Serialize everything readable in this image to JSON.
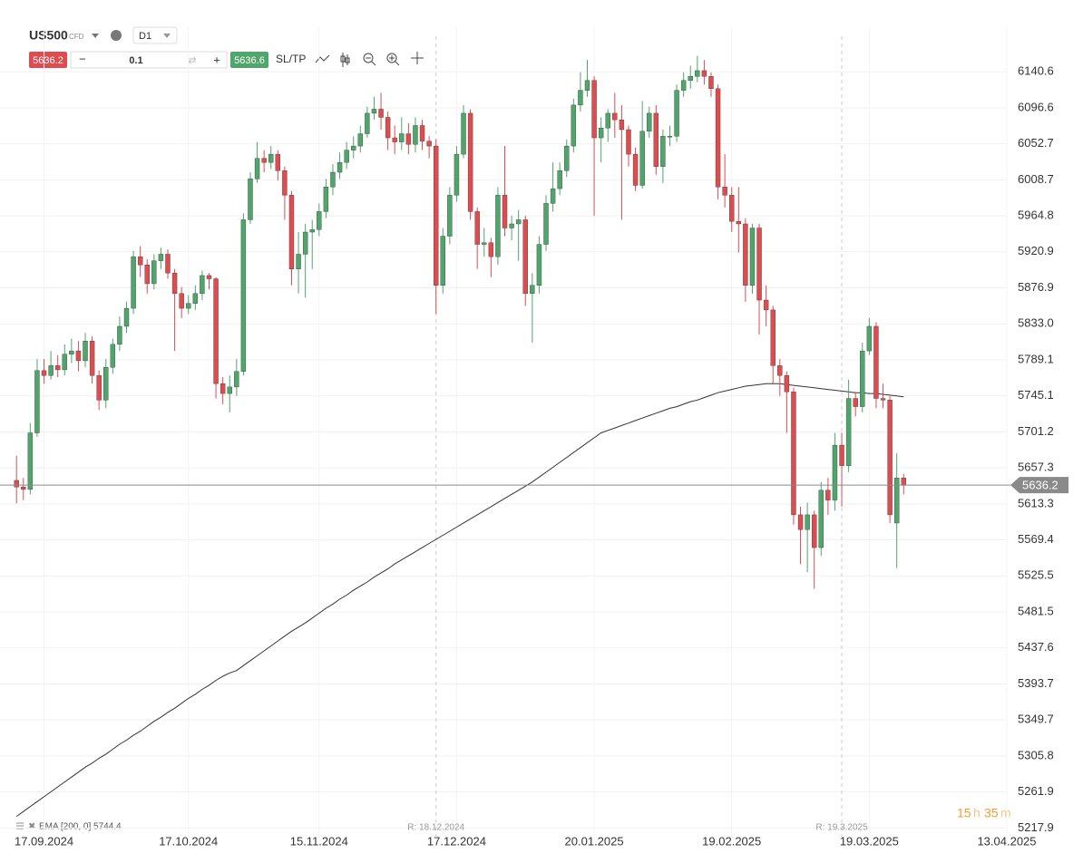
{
  "toolbar": {
    "symbol": "US500",
    "symbol_type": "CFD",
    "timeframe": "D1",
    "sell_price": "5636.2",
    "volume": "0.1",
    "buy_price": "5636.6",
    "sltp": "SL/TP"
  },
  "timer": {
    "hours": "15",
    "hours_unit": "h",
    "minutes": "35",
    "minutes_unit": "m"
  },
  "chart_data": {
    "type": "candlestick",
    "up_color": "#4fa66a",
    "down_color": "#e04b4f",
    "open": [
      5642,
      5634,
      5631,
      5700,
      5776,
      5770,
      5782,
      5777,
      5796,
      5800,
      5788,
      5812,
      5770,
      5740,
      5780,
      5808,
      5830,
      5852,
      5915,
      5905,
      5882,
      5910,
      5918,
      5895,
      5870,
      5852,
      5858,
      5870,
      5892,
      5888,
      5760,
      5748,
      5756,
      5775,
      5960,
      6010,
      6035,
      6030,
      6040,
      6020,
      5990,
      5900,
      5918,
      5945,
      5948,
      5970,
      6000,
      6018,
      6030,
      6045,
      6050,
      6065,
      6090,
      6095,
      6085,
      6060,
      6055,
      6065,
      6052,
      6075,
      6056,
      6050,
      5880,
      5940,
      5990,
      6040,
      6090,
      5970,
      5930,
      5932,
      5915,
      5990,
      5950,
      5955,
      5960,
      5870,
      5880,
      5930,
      5980,
      5998,
      6020,
      6050,
      6100,
      6118,
      6130,
      6060,
      6072,
      6090,
      6082,
      6070,
      6040,
      6002,
      6068,
      6090,
      6025,
      6062,
      6062,
      6118,
      6130,
      6135,
      6142,
      6135,
      6120,
      6000,
      5990,
      5958,
      5955,
      5880,
      5950,
      5862,
      5850,
      5782,
      5770,
      5750,
      5600,
      5582,
      5600,
      5560,
      5630,
      5618,
      5685,
      5660,
      5742,
      5732,
      5800,
      5830,
      5742,
      5740,
      5590,
      5645
    ],
    "high": [
      5672,
      5645,
      5712,
      5790,
      5790,
      5800,
      5795,
      5808,
      5815,
      5812,
      5822,
      5818,
      5776,
      5790,
      5815,
      5842,
      5860,
      5922,
      5928,
      5912,
      5918,
      5926,
      5924,
      5900,
      5878,
      5868,
      5880,
      5898,
      5895,
      5890,
      5768,
      5770,
      5790,
      5968,
      6018,
      6055,
      6045,
      6050,
      6045,
      6025,
      5995,
      5945,
      5955,
      5960,
      5980,
      6010,
      6028,
      6042,
      6055,
      6062,
      6075,
      6098,
      6110,
      6115,
      6092,
      6075,
      6085,
      6078,
      6085,
      6082,
      6062,
      6058,
      5950,
      6000,
      6050,
      6100,
      6095,
      5975,
      5950,
      5938,
      6000,
      6050,
      5965,
      5972,
      5965,
      5895,
      5940,
      5990,
      6030,
      6030,
      6058,
      6108,
      6140,
      6155,
      6135,
      6085,
      6095,
      6115,
      6100,
      6075,
      6048,
      6105,
      6098,
      6100,
      6070,
      6075,
      6125,
      6140,
      6148,
      6160,
      6155,
      6140,
      6125,
      6040,
      6000,
      6000,
      5962,
      5955,
      5955,
      5880,
      5855,
      5790,
      5775,
      5755,
      5610,
      5615,
      5605,
      5640,
      5645,
      5700,
      5700,
      5765,
      5750,
      5810,
      5840,
      5835,
      5760,
      5745,
      5675,
      5650
    ],
    "low": [
      5614,
      5618,
      5625,
      5695,
      5760,
      5765,
      5768,
      5770,
      5785,
      5775,
      5780,
      5760,
      5728,
      5730,
      5772,
      5800,
      5822,
      5845,
      5890,
      5870,
      5875,
      5900,
      5888,
      5800,
      5840,
      5845,
      5850,
      5862,
      5875,
      5742,
      5735,
      5725,
      5745,
      5770,
      5955,
      6005,
      6018,
      6022,
      6008,
      5960,
      5880,
      5870,
      5865,
      5900,
      5940,
      5962,
      5990,
      6010,
      6022,
      6035,
      6042,
      6060,
      6082,
      6070,
      6045,
      6040,
      6045,
      6040,
      6042,
      6045,
      6035,
      5845,
      5870,
      5930,
      5982,
      6035,
      5960,
      5900,
      5915,
      5890,
      5905,
      5940,
      5935,
      5910,
      5855,
      5810,
      5870,
      5922,
      5970,
      5990,
      6012,
      6042,
      6092,
      6110,
      5965,
      6030,
      6055,
      6060,
      5960,
      6025,
      5995,
      5998,
      6060,
      6015,
      6005,
      6050,
      6055,
      6110,
      6120,
      6128,
      6125,
      6110,
      5985,
      5975,
      5945,
      5920,
      5860,
      5870,
      5820,
      5830,
      5760,
      5745,
      5700,
      5588,
      5540,
      5530,
      5510,
      5550,
      5600,
      5605,
      5610,
      5652,
      5720,
      5725,
      5795,
      5730,
      5730,
      5590,
      5535,
      5625
    ],
    "close": [
      5634,
      5631,
      5700,
      5776,
      5770,
      5782,
      5777,
      5796,
      5800,
      5788,
      5812,
      5770,
      5740,
      5780,
      5808,
      5830,
      5852,
      5915,
      5905,
      5882,
      5910,
      5918,
      5895,
      5870,
      5852,
      5858,
      5870,
      5892,
      5888,
      5760,
      5748,
      5756,
      5775,
      5960,
      6010,
      6035,
      6030,
      6040,
      6020,
      5990,
      5900,
      5918,
      5945,
      5948,
      5970,
      6000,
      6018,
      6030,
      6045,
      6050,
      6065,
      6090,
      6095,
      6085,
      6060,
      6055,
      6065,
      6052,
      6075,
      6056,
      6050,
      5880,
      5940,
      5990,
      6040,
      6090,
      5970,
      5930,
      5932,
      5915,
      5990,
      5950,
      5955,
      5960,
      5870,
      5880,
      5930,
      5980,
      5998,
      6020,
      6050,
      6100,
      6118,
      6130,
      6060,
      6072,
      6090,
      6082,
      6070,
      6040,
      6002,
      6068,
      6090,
      6025,
      6062,
      6062,
      6118,
      6130,
      6135,
      6142,
      6135,
      6120,
      6000,
      5990,
      5958,
      5955,
      5880,
      5950,
      5862,
      5850,
      5782,
      5770,
      5750,
      5600,
      5582,
      5600,
      5560,
      5630,
      5618,
      5685,
      5660,
      5742,
      5732,
      5800,
      5830,
      5742,
      5740,
      5600,
      5645,
      5636
    ],
    "ema": {
      "name": "EMA [200, 0] 5744.4",
      "color": "#333333",
      "values": [
        5232,
        5238,
        5244,
        5250,
        5256,
        5262,
        5268,
        5274,
        5280,
        5286,
        5292,
        5297,
        5303,
        5308,
        5314,
        5320,
        5325,
        5331,
        5336,
        5342,
        5348,
        5353,
        5359,
        5364,
        5370,
        5376,
        5381,
        5387,
        5392,
        5398,
        5403,
        5407,
        5410,
        5416,
        5422,
        5428,
        5434,
        5440,
        5446,
        5452,
        5458,
        5463,
        5468,
        5474,
        5480,
        5486,
        5491,
        5497,
        5502,
        5508,
        5513,
        5518,
        5524,
        5529,
        5534,
        5540,
        5545,
        5550,
        5555,
        5560,
        5565,
        5570,
        5575,
        5580,
        5585,
        5590,
        5595,
        5600,
        5605,
        5610,
        5615,
        5620,
        5625,
        5630,
        5635,
        5640,
        5646,
        5652,
        5658,
        5664,
        5670,
        5676,
        5682,
        5688,
        5694,
        5700,
        5703,
        5706,
        5709,
        5712,
        5715,
        5718,
        5721,
        5724,
        5727,
        5730,
        5732,
        5735,
        5738,
        5740,
        5743,
        5746,
        5749,
        5751,
        5753,
        5755,
        5757,
        5758,
        5759,
        5760,
        5760,
        5760,
        5759,
        5758,
        5757,
        5756,
        5755,
        5754,
        5753,
        5752,
        5751,
        5750,
        5749,
        5749,
        5748,
        5748,
        5747,
        5746,
        5745,
        5744
      ]
    },
    "last_price": 5636.2,
    "markers": [
      {
        "x": 61,
        "label": "R: 18.12.2024"
      },
      {
        "x": 120,
        "label": "R: 19.3.2025"
      }
    ],
    "ylim": [
      5205,
      6195
    ],
    "yticks": [
      6140.6,
      6096.6,
      6052.7,
      6008.7,
      5964.8,
      5920.9,
      5876.9,
      {
        "value": 5833,
        "label": "5833.0"
      },
      5789.1,
      5745.1,
      5701.2,
      5657.3,
      5613.3,
      5569.4,
      5525.5,
      5481.5,
      5437.6,
      5393.7,
      5349.7,
      5305.8,
      5261.9,
      5217.9
    ],
    "xlim": [
      -2.4,
      144
    ],
    "xticks": [
      {
        "value": 4,
        "label": "17.09.2024"
      },
      {
        "value": 25,
        "label": "17.10.2024"
      },
      {
        "value": 44,
        "label": "15.11.2024"
      },
      {
        "value": 64,
        "label": "17.12.2024"
      },
      {
        "value": 84,
        "label": "20.01.2025"
      },
      {
        "value": 104,
        "label": "19.02.2025"
      },
      {
        "value": 124,
        "label": "19.03.2025"
      },
      {
        "value": 144,
        "label": "13.04.2025"
      }
    ],
    "grid": true
  }
}
